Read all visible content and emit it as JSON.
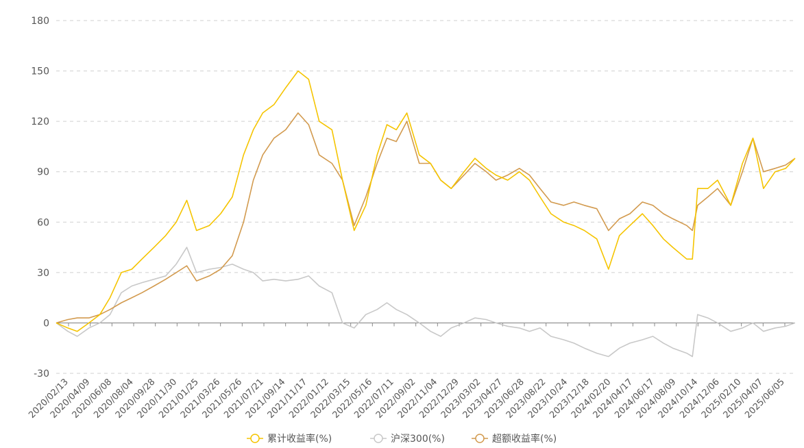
{
  "chart_data": {
    "type": "line",
    "title": "",
    "xlabel": "",
    "ylabel": "",
    "ylim": [
      -30,
      180
    ],
    "yticks": [
      -30,
      0,
      30,
      60,
      90,
      120,
      150,
      180
    ],
    "grid": "horizontal-dashed",
    "legend_position": "bottom",
    "x_tick_labels": [
      "2020/02/13",
      "2020/04/09",
      "2020/06/08",
      "2020/08/04",
      "2020/09/28",
      "2020/11/30",
      "2021/01/25",
      "2021/03/26",
      "2021/05/26",
      "2021/07/21",
      "2021/09/14",
      "2021/11/17",
      "2022/01/12",
      "2022/03/15",
      "2022/05/16",
      "2022/07/11",
      "2022/09/02",
      "2022/11/04",
      "2022/12/29",
      "2023/03/02",
      "2023/04/27",
      "2023/06/28",
      "2023/08/22",
      "2023/10/24",
      "2023/12/18",
      "2024/02/20",
      "2024/04/17",
      "2024/06/17",
      "2024/08/09",
      "2024/10/14",
      "2024/12/06",
      "2025/02/10",
      "2025/04/07",
      "2025/06/05"
    ],
    "x": [
      "2020/02/13",
      "2020/03/15",
      "2020/04/09",
      "2020/05/10",
      "2020/06/08",
      "2020/07/05",
      "2020/08/04",
      "2020/09/01",
      "2020/09/28",
      "2020/10/30",
      "2020/11/30",
      "2020/12/28",
      "2021/01/25",
      "2021/02/20",
      "2021/03/26",
      "2021/04/25",
      "2021/05/26",
      "2021/06/25",
      "2021/07/21",
      "2021/08/15",
      "2021/09/14",
      "2021/10/15",
      "2021/11/17",
      "2021/12/15",
      "2022/01/12",
      "2022/02/15",
      "2022/03/15",
      "2022/04/15",
      "2022/05/16",
      "2022/06/15",
      "2022/07/11",
      "2022/08/05",
      "2022/09/02",
      "2022/10/05",
      "2022/11/04",
      "2022/12/01",
      "2022/12/29",
      "2023/02/01",
      "2023/03/02",
      "2023/04/01",
      "2023/04/27",
      "2023/05/28",
      "2023/06/28",
      "2023/07/25",
      "2023/08/22",
      "2023/09/20",
      "2023/10/24",
      "2023/11/20",
      "2023/12/18",
      "2024/01/20",
      "2024/02/20",
      "2024/03/20",
      "2024/04/17",
      "2024/05/20",
      "2024/06/17",
      "2024/07/15",
      "2024/08/09",
      "2024/09/15",
      "2024/09/30",
      "2024/10/14",
      "2024/11/10",
      "2024/12/06",
      "2025/01/10",
      "2025/02/10",
      "2025/03/10",
      "2025/04/07",
      "2025/05/08",
      "2025/06/05",
      "2025/06/30"
    ],
    "series": [
      {
        "name": "累计收益率(%)",
        "color": "#F5C400",
        "values": [
          0,
          -3,
          -5,
          0,
          5,
          15,
          30,
          32,
          38,
          45,
          52,
          60,
          73,
          55,
          58,
          65,
          75,
          100,
          115,
          125,
          130,
          140,
          150,
          145,
          120,
          115,
          85,
          55,
          70,
          100,
          118,
          115,
          125,
          100,
          95,
          85,
          80,
          90,
          98,
          92,
          88,
          85,
          90,
          85,
          75,
          65,
          60,
          58,
          55,
          50,
          32,
          52,
          58,
          65,
          58,
          50,
          45,
          38,
          38,
          80,
          80,
          85,
          70,
          95,
          110,
          80,
          90,
          92,
          98
        ]
      },
      {
        "name": "沪深300(%)",
        "color": "#C8C8C8",
        "values": [
          0,
          -5,
          -8,
          -3,
          0,
          5,
          18,
          22,
          24,
          26,
          28,
          35,
          45,
          30,
          32,
          33,
          35,
          32,
          30,
          25,
          26,
          25,
          26,
          28,
          22,
          18,
          0,
          -3,
          5,
          8,
          12,
          8,
          5,
          0,
          -5,
          -8,
          -3,
          0,
          3,
          2,
          0,
          -2,
          -3,
          -5,
          -3,
          -8,
          -10,
          -12,
          -15,
          -18,
          -20,
          -15,
          -12,
          -10,
          -8,
          -12,
          -15,
          -18,
          -20,
          5,
          3,
          0,
          -5,
          -3,
          0,
          -5,
          -3,
          -2,
          0
        ]
      },
      {
        "name": "超额收益率(%)",
        "color": "#D29A4E",
        "values": [
          0,
          2,
          3,
          3,
          5,
          8,
          12,
          15,
          18,
          22,
          26,
          30,
          34,
          25,
          28,
          32,
          40,
          60,
          85,
          100,
          110,
          115,
          125,
          118,
          100,
          95,
          85,
          58,
          75,
          95,
          110,
          108,
          120,
          95,
          95,
          85,
          80,
          88,
          95,
          90,
          85,
          88,
          92,
          88,
          80,
          72,
          70,
          72,
          70,
          68,
          55,
          62,
          65,
          72,
          70,
          65,
          62,
          58,
          55,
          70,
          75,
          80,
          70,
          90,
          110,
          90,
          92,
          94,
          98
        ]
      }
    ]
  }
}
